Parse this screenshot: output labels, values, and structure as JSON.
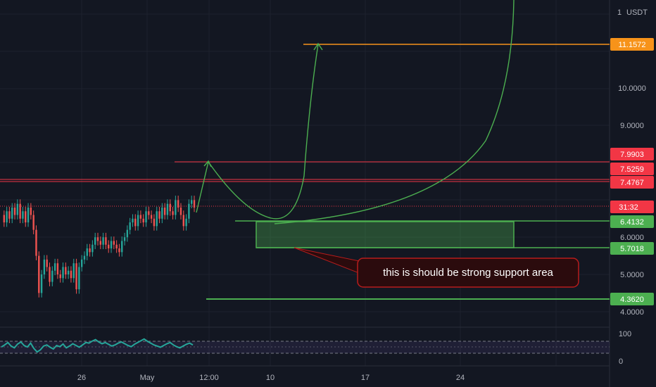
{
  "chart_data": {
    "type": "line",
    "currency_label": "USDT",
    "y_axis_ticks": [
      "10.0000",
      "9.0000",
      "6.0000",
      "5.0000",
      "4.0000"
    ],
    "x_axis_ticks": [
      "26",
      "May",
      "12:00",
      "10",
      "17",
      "24"
    ],
    "price_tags": [
      {
        "label": "11.1572",
        "color": "#f7931a"
      },
      {
        "label": "7.9903",
        "color": "#f23645"
      },
      {
        "label": "7.5259",
        "color": "#f23645"
      },
      {
        "label": "7.4767",
        "color": "#f23645"
      },
      {
        "label": "31:32",
        "color": "#f23645"
      },
      {
        "label": "6.4132",
        "color": "#4caf50"
      },
      {
        "label": "5.7018",
        "color": "#4caf50"
      },
      {
        "label": "4.3620",
        "color": "#4caf50"
      }
    ],
    "support_zone": {
      "low": 5.7018,
      "high": 6.4132
    },
    "annotation": "this is should be strong support area",
    "rsi_ticks": [
      "100",
      "0"
    ],
    "price_series": [
      6.6,
      6.4,
      6.7,
      6.5,
      6.8,
      6.6,
      6.9,
      6.5,
      6.7,
      6.4,
      6.8,
      6.6,
      6.2,
      5.5,
      4.5,
      5.0,
      5.4,
      5.2,
      4.8,
      5.1,
      5.3,
      5.0,
      4.9,
      5.2,
      5.0,
      5.1,
      4.9,
      5.3,
      4.6,
      5.2,
      5.4,
      5.5,
      5.7,
      5.6,
      5.8,
      6.0,
      5.9,
      5.8,
      6.0,
      5.8,
      5.7,
      5.9,
      5.8,
      5.7,
      5.6,
      5.9,
      6.0,
      6.2,
      6.4,
      6.5,
      6.3,
      6.6,
      6.5,
      6.4,
      6.7,
      6.6,
      6.5,
      6.3,
      6.7,
      6.5,
      6.8,
      6.6,
      6.9,
      6.7,
      6.6,
      7.0,
      6.8,
      6.6,
      6.3,
      6.5,
      6.9,
      7.0,
      6.8
    ],
    "rsi_series": [
      45,
      52,
      60,
      48,
      42,
      55,
      62,
      50,
      45,
      58,
      40,
      28,
      35,
      48,
      52,
      44,
      38,
      50,
      46,
      55,
      42,
      48,
      56,
      50,
      44,
      52,
      60,
      58,
      65,
      70,
      62,
      56,
      60,
      54,
      48,
      52,
      58,
      62,
      56,
      50,
      46,
      54,
      60,
      66,
      72,
      64,
      58,
      52,
      48,
      44,
      50,
      56,
      60,
      52,
      46,
      42,
      48,
      54,
      58,
      52
    ],
    "projection_paths": [
      {
        "name": "up-arrow",
        "points": [
          [
            6.6
          ],
          [
            7.99
          ],
          [
            6.2
          ],
          [
            11.157
          ]
        ]
      },
      {
        "name": "parabola",
        "points": [
          [
            6.35
          ],
          [
            12.0
          ]
        ]
      }
    ]
  }
}
